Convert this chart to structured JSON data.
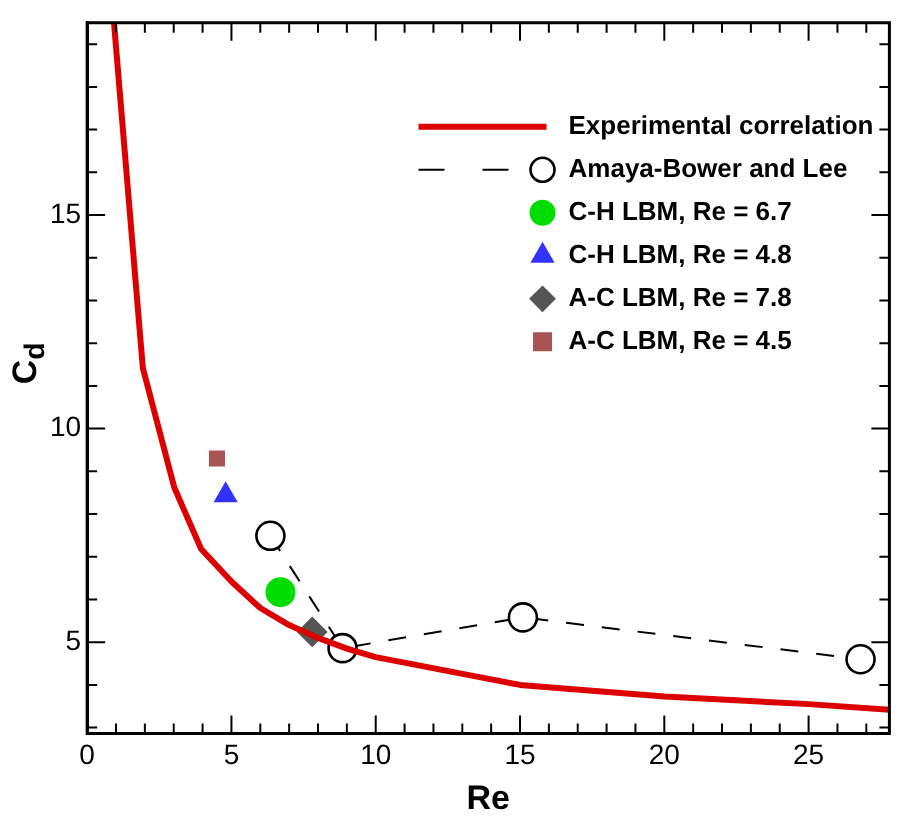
{
  "chart_data": {
    "type": "line",
    "xlabel": "Re",
    "ylabel": "C$_{d}$",
    "xlim": [
      0,
      27.8
    ],
    "ylim": [
      2.86,
      19.5
    ],
    "xticks": [
      0,
      {
        "value": 1,
        "label": null
      },
      {
        "value": 2,
        "label": null
      },
      {
        "value": 3,
        "label": null
      },
      {
        "value": 4,
        "label": null
      },
      5,
      {
        "value": 6,
        "label": null
      },
      {
        "value": 7,
        "label": null
      },
      {
        "value": 8,
        "label": null
      },
      {
        "value": 9,
        "label": null
      },
      10,
      {
        "value": 11,
        "label": null
      },
      {
        "value": 12,
        "label": null
      },
      {
        "value": 13,
        "label": null
      },
      {
        "value": 14,
        "label": null
      },
      15,
      {
        "value": 16,
        "label": null
      },
      {
        "value": 17,
        "label": null
      },
      {
        "value": 18,
        "label": null
      },
      {
        "value": 19,
        "label": null
      },
      20,
      {
        "value": 21,
        "label": null
      },
      {
        "value": 22,
        "label": null
      },
      {
        "value": 23,
        "label": null
      },
      {
        "value": 24,
        "label": null
      },
      25,
      {
        "value": 26,
        "label": null
      },
      {
        "value": 27,
        "label": null
      }
    ],
    "yticks": [
      {
        "value": 3,
        "label": null
      },
      {
        "value": 4,
        "label": null
      },
      5,
      {
        "value": 6,
        "label": null
      },
      {
        "value": 7,
        "label": null
      },
      {
        "value": 8,
        "label": null
      },
      {
        "value": 9,
        "label": null
      },
      10,
      {
        "value": 11,
        "label": null
      },
      {
        "value": 12,
        "label": null
      },
      {
        "value": 13,
        "label": null
      },
      {
        "value": 14,
        "label": null
      },
      15,
      {
        "value": 16,
        "label": null
      },
      {
        "value": 17,
        "label": null
      },
      {
        "value": 18,
        "label": null
      },
      {
        "value": 19,
        "label": null
      }
    ],
    "grid": false,
    "legend": "top right",
    "series": [
      {
        "name": "Experimental correlation",
        "color": "#dd0000",
        "marker": "none",
        "line_style": "solid",
        "x": [
          0.93,
          1.93,
          3.02,
          3.95,
          5,
          6,
          7,
          8,
          9,
          10,
          15,
          20,
          25,
          27.8
        ],
        "values": [
          19.5,
          11.42,
          8.62,
          7.18,
          6.42,
          5.8,
          5.4,
          5.1,
          4.85,
          4.65,
          4.0,
          3.73,
          3.55,
          3.42
        ]
      },
      {
        "name": "Amaya-Bower and Lee",
        "color": "#000000",
        "marker": "circle",
        "line_style": "dashed",
        "x": [
          6.35,
          8.85,
          15.1,
          26.8
        ],
        "values": [
          7.49,
          4.86,
          5.58,
          4.6
        ]
      },
      {
        "name": "C-H LBM, Re = 6.7",
        "type": "scatter",
        "color": "#00dd00",
        "marker": "circle",
        "x": [
          6.7
        ],
        "values": [
          6.17
        ]
      },
      {
        "name": "C-H LBM, Re = 4.8",
        "type": "scatter",
        "color": "#3333ff",
        "marker": "triangle",
        "x": [
          4.8
        ],
        "values": [
          8.44
        ]
      },
      {
        "name": "A-C LBM, Re = 7.8",
        "type": "scatter",
        "color": "#555555",
        "marker": "diamond",
        "x": [
          7.8
        ],
        "values": [
          5.24
        ]
      },
      {
        "name": "A-C LBM, Re = 4.5",
        "type": "scatter",
        "color": "#aa5555",
        "marker": "square",
        "x": [
          4.5
        ],
        "values": [
          9.3
        ]
      }
    ]
  }
}
